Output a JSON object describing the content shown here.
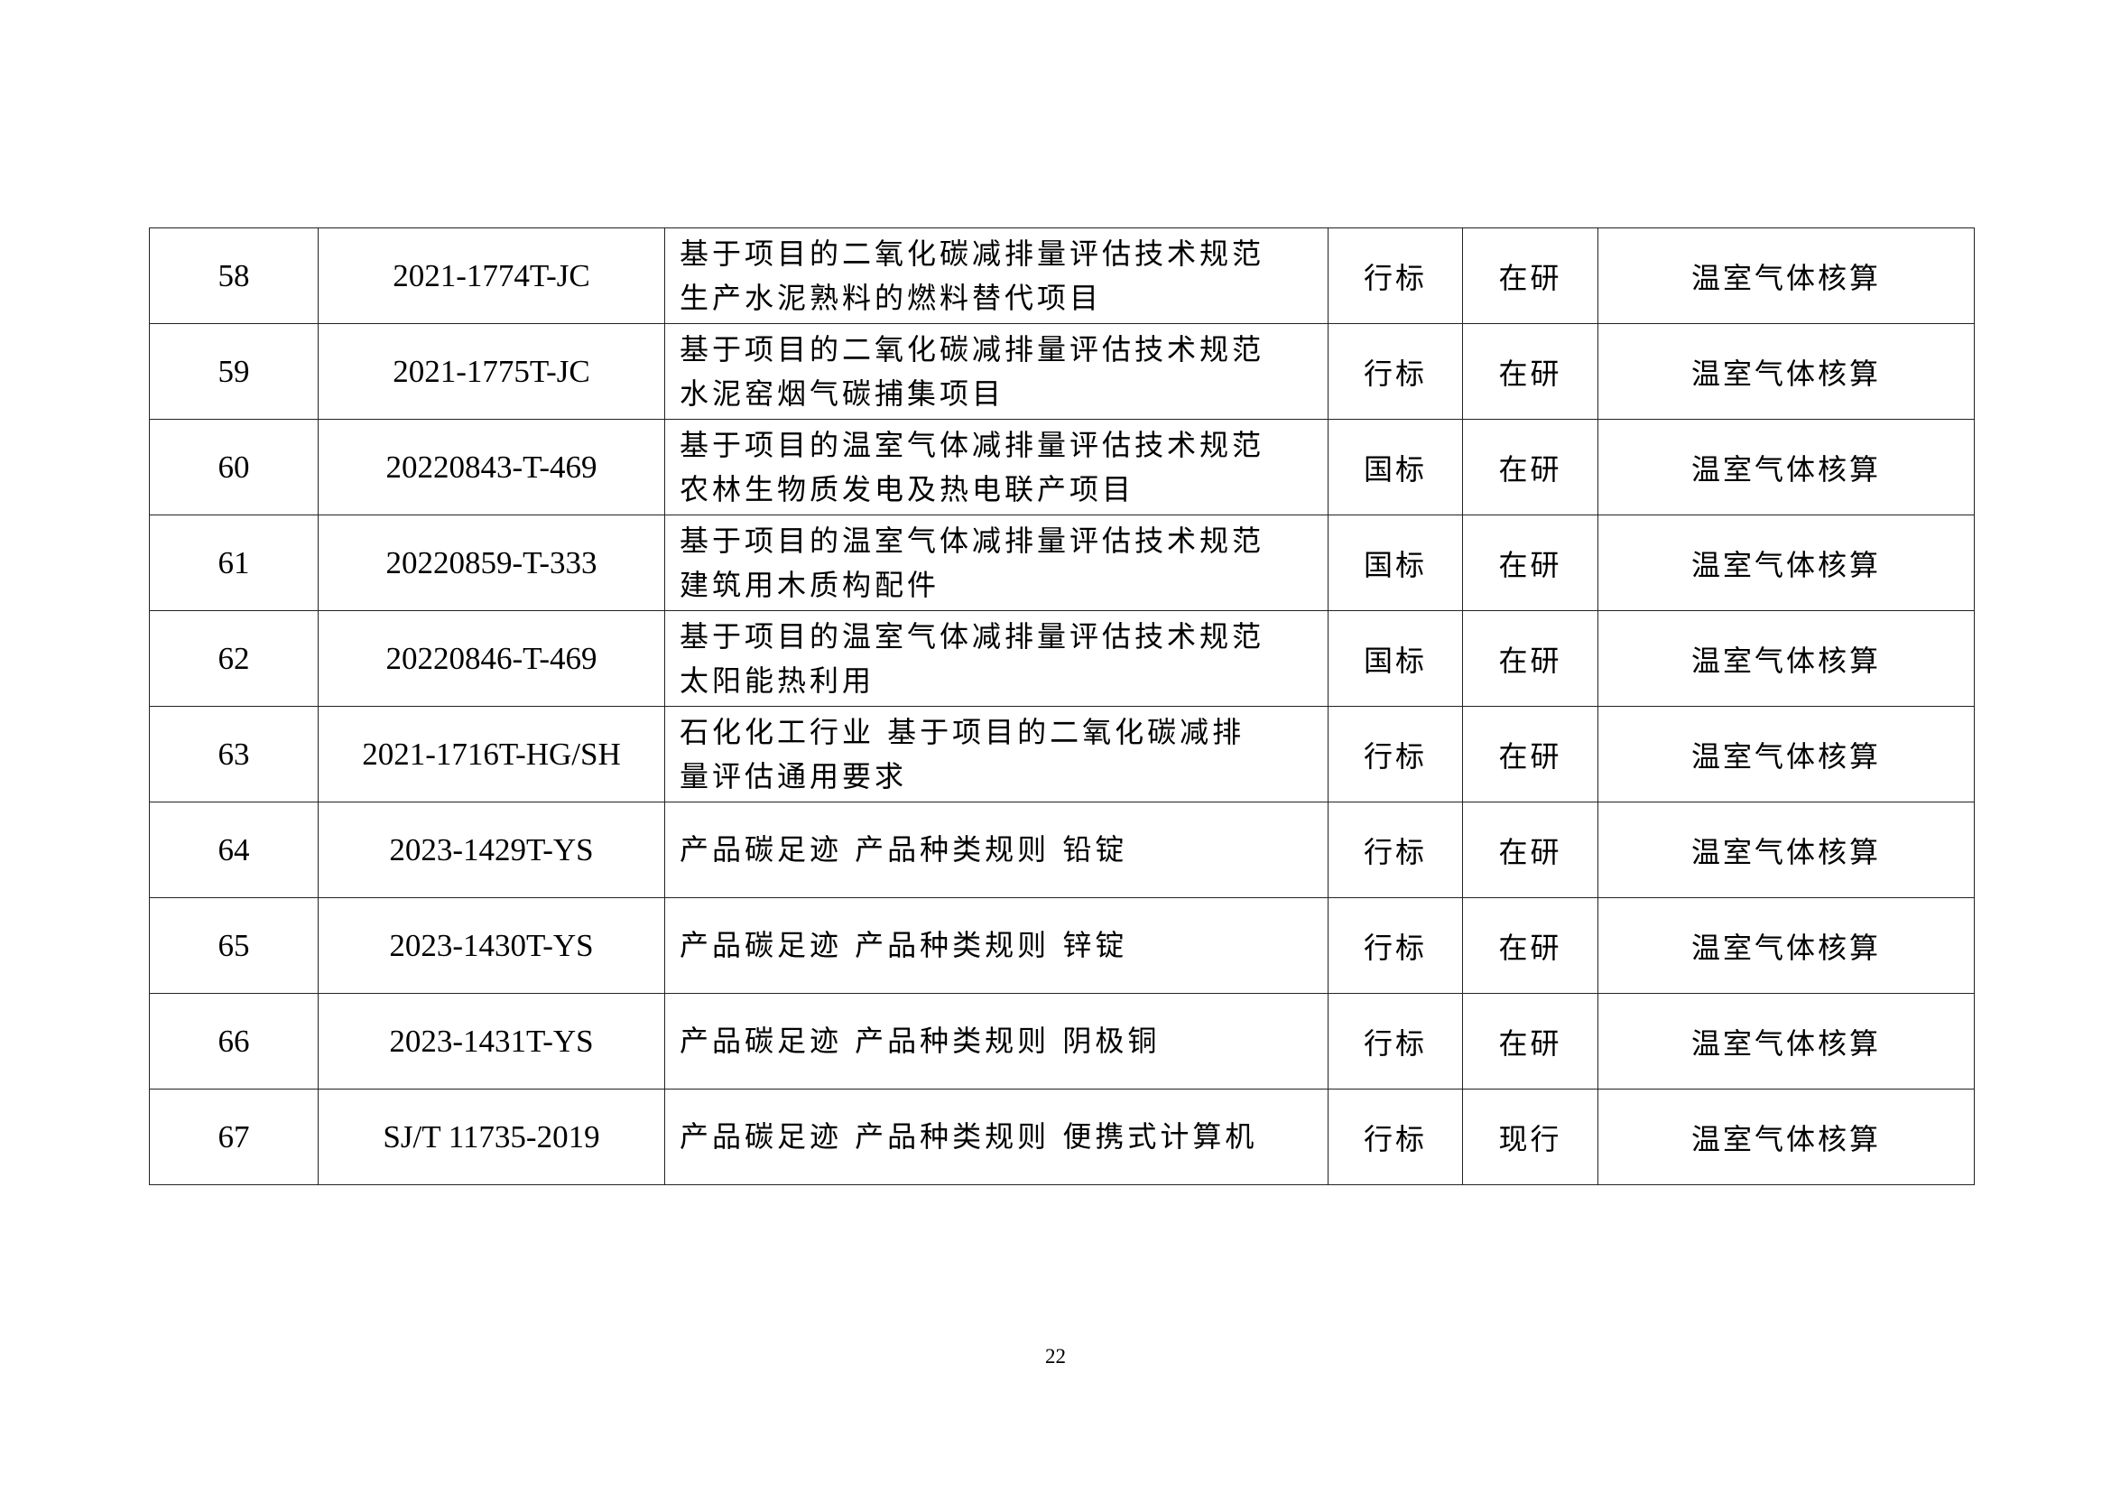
{
  "rows": [
    {
      "no": "58",
      "code": "2021-1774T-JC",
      "name": [
        "基于项目的二氧化碳减排量评估技术规范",
        "生产水泥熟料的燃料替代项目"
      ],
      "level": "行标",
      "status": "在研",
      "category": "温室气体核算"
    },
    {
      "no": "59",
      "code": "2021-1775T-JC",
      "name": [
        "基于项目的二氧化碳减排量评估技术规范",
        "水泥窑烟气碳捕集项目"
      ],
      "level": "行标",
      "status": "在研",
      "category": "温室气体核算"
    },
    {
      "no": "60",
      "code": "20220843-T-469",
      "name": [
        "基于项目的温室气体减排量评估技术规范",
        "农林生物质发电及热电联产项目"
      ],
      "level": "国标",
      "status": "在研",
      "category": "温室气体核算"
    },
    {
      "no": "61",
      "code": "20220859-T-333",
      "name": [
        "基于项目的温室气体减排量评估技术规范",
        "建筑用木质构配件"
      ],
      "level": "国标",
      "status": "在研",
      "category": "温室气体核算"
    },
    {
      "no": "62",
      "code": "20220846-T-469",
      "name": [
        "基于项目的温室气体减排量评估技术规范",
        "太阳能热利用"
      ],
      "level": "国标",
      "status": "在研",
      "category": "温室气体核算"
    },
    {
      "no": "63",
      "code": "2021-1716T-HG/SH",
      "name": [
        "石化化工行业 基于项目的二氧化碳减排",
        "量评估通用要求"
      ],
      "level": "行标",
      "status": "在研",
      "category": "温室气体核算"
    },
    {
      "no": "64",
      "code": "2023-1429T-YS",
      "name": [
        "产品碳足迹 产品种类规则 铅锭"
      ],
      "level": "行标",
      "status": "在研",
      "category": "温室气体核算"
    },
    {
      "no": "65",
      "code": "2023-1430T-YS",
      "name": [
        "产品碳足迹 产品种类规则 锌锭"
      ],
      "level": "行标",
      "status": "在研",
      "category": "温室气体核算"
    },
    {
      "no": "66",
      "code": "2023-1431T-YS",
      "name": [
        "产品碳足迹 产品种类规则 阴极铜"
      ],
      "level": "行标",
      "status": "在研",
      "category": "温室气体核算"
    },
    {
      "no": "67",
      "code": "SJ/T 11735-2019",
      "name": [
        "产品碳足迹 产品种类规则 便携式计算机"
      ],
      "level": "行标",
      "status": "现行",
      "category": "温室气体核算"
    }
  ],
  "page_number": "22"
}
